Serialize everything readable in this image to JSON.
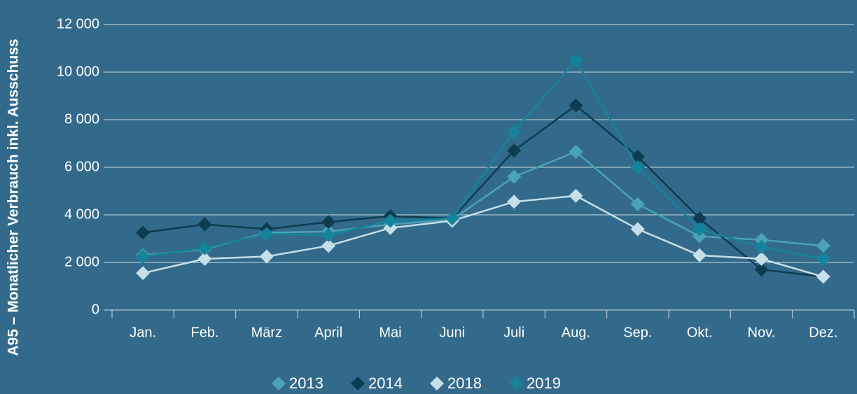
{
  "chart_data": {
    "type": "line",
    "y_label": "A95 – Monatlicher Verbrauch inkl. Ausschuss",
    "categories": [
      "Jan.",
      "Feb.",
      "März",
      "April",
      "Mai",
      "Juni",
      "Juli",
      "Aug.",
      "Sep.",
      "Okt.",
      "Nov.",
      "Dez."
    ],
    "series": [
      {
        "name": "2013",
        "color": "#4aa3b6",
        "values": [
          2300,
          2550,
          3250,
          3300,
          3600,
          3800,
          5600,
          6650,
          4450,
          3100,
          2950,
          2700
        ]
      },
      {
        "name": "2014",
        "color": "#0d3c51",
        "values": [
          3250,
          3600,
          3400,
          3700,
          3950,
          3850,
          6700,
          8600,
          6450,
          3850,
          1700,
          1400
        ]
      },
      {
        "name": "2018",
        "color": "#c5dfe8",
        "values": [
          1550,
          2150,
          2250,
          2700,
          3450,
          3750,
          4550,
          4800,
          3400,
          2300,
          2150,
          1400
        ]
      },
      {
        "name": "2019",
        "color": "#14849b",
        "values": [
          2250,
          2600,
          3200,
          3150,
          3750,
          3850,
          7500,
          10500,
          6000,
          3400,
          2650,
          2150
        ]
      }
    ],
    "ylim": [
      0,
      12000
    ],
    "yticks": [
      0,
      {
        "value": 2000,
        "label": "2 000"
      },
      {
        "value": 4000,
        "label": "4 000"
      },
      {
        "value": 6000,
        "label": "6 000"
      },
      {
        "value": 8000,
        "label": "8 000"
      },
      {
        "value": 10000,
        "label": "10 000"
      },
      {
        "value": 12000,
        "label": "12 000"
      }
    ],
    "grid": true,
    "legend": "bottom"
  }
}
